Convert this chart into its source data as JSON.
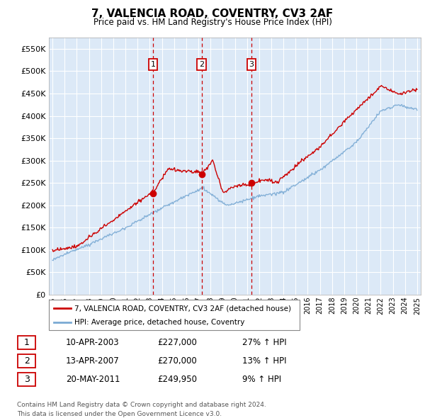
{
  "title": "7, VALENCIA ROAD, COVENTRY, CV3 2AF",
  "subtitle": "Price paid vs. HM Land Registry's House Price Index (HPI)",
  "ylim": [
    0,
    575000
  ],
  "yticks": [
    0,
    50000,
    100000,
    150000,
    200000,
    250000,
    300000,
    350000,
    400000,
    450000,
    500000,
    550000
  ],
  "xlim_start": 1994.7,
  "xlim_end": 2025.3,
  "plot_bg": "#dce9f7",
  "grid_color": "#ffffff",
  "legend_label_red": "7, VALENCIA ROAD, COVENTRY, CV3 2AF (detached house)",
  "legend_label_blue": "HPI: Average price, detached house, Coventry",
  "transactions": [
    {
      "id": 1,
      "date": "10-APR-2003",
      "x": 2003.27,
      "price": 227000,
      "pct": "27%",
      "direction": "↑"
    },
    {
      "id": 2,
      "date": "13-APR-2007",
      "x": 2007.28,
      "price": 270000,
      "pct": "13%",
      "direction": "↑"
    },
    {
      "id": 3,
      "date": "20-MAY-2011",
      "x": 2011.38,
      "price": 249950,
      "pct": "9%",
      "direction": "↑"
    }
  ],
  "footer": "Contains HM Land Registry data © Crown copyright and database right 2024.\nThis data is licensed under the Open Government Licence v3.0.",
  "red_color": "#cc0000",
  "blue_color": "#7aaad4",
  "dashed_color": "#cc0000"
}
